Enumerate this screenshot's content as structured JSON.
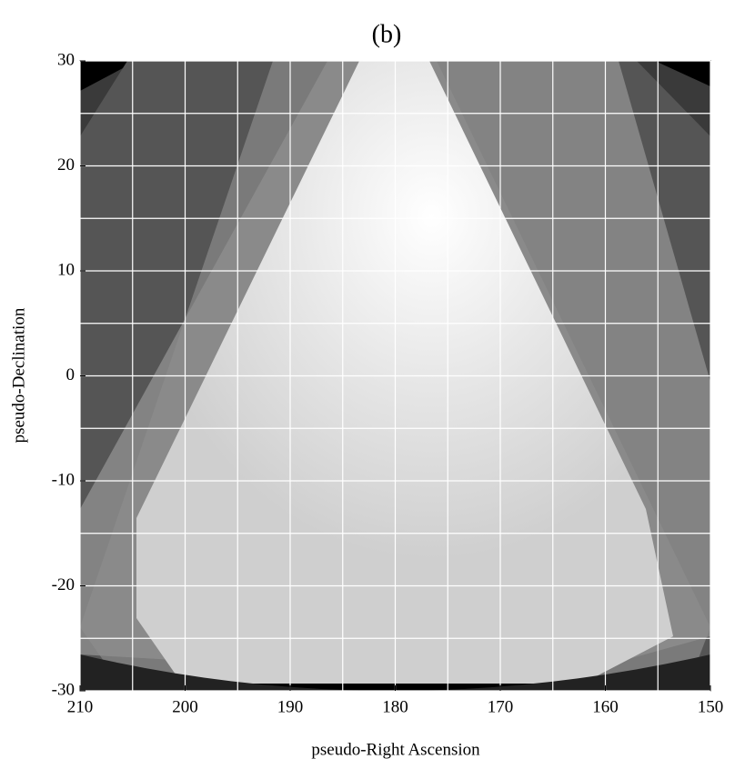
{
  "chart_data": {
    "type": "image",
    "title": "(b)",
    "x_label": "pseudo-Right Ascension",
    "y_label": "pseudo-Declination",
    "xlim": [
      210,
      150
    ],
    "xticks": [
      210,
      200,
      190,
      180,
      170,
      160,
      150
    ],
    "xgrid": [
      210,
      205,
      200,
      195,
      190,
      185,
      180,
      175,
      170,
      165,
      160,
      155,
      150
    ],
    "ylim": [
      -30,
      30
    ],
    "yticks": [
      -30,
      -20,
      -10,
      0,
      10,
      20,
      30
    ],
    "ygrid": [
      -30,
      -25,
      -20,
      -15,
      -10,
      -5,
      0,
      5,
      10,
      15,
      20,
      25,
      30
    ],
    "grid": true,
    "grid_color": "#ffffff",
    "colormap": "gray"
  }
}
